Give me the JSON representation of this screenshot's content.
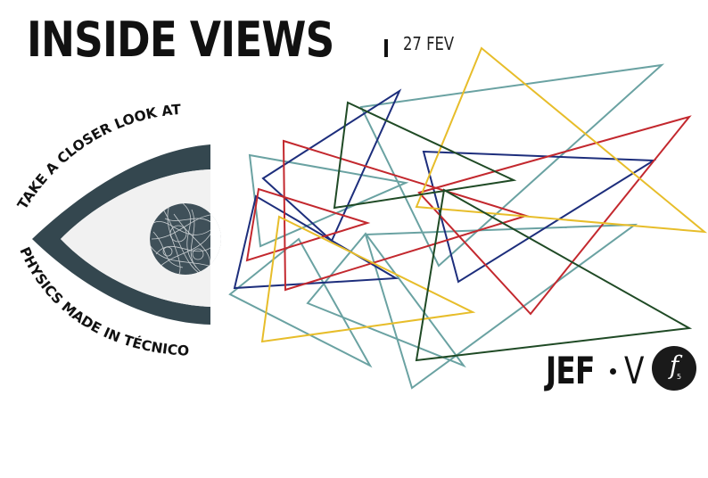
{
  "poster": {
    "title": "INSIDE VIEWS",
    "date": "27 FEV",
    "eye_top_text": "TAKE A CLOSER LOOK AT",
    "eye_bottom_text": "PHYSICS MADE IN TÉCNICO"
  },
  "logo": {
    "jef": "JEF",
    "roman": "V",
    "badge_glyph": "f",
    "badge_subscript": "5"
  },
  "icons": {
    "eye": "eye-icon",
    "pupil": "particle-tracks-pupil-icon",
    "triangles": "triangle-cluster-icon"
  },
  "colors": {
    "eye_frame": "#34474f",
    "eye_white": "#f1f1f1",
    "pupil": "#3f5059",
    "tracks": "#c8cdd0",
    "teal": "#6aa2a2",
    "navy": "#1d2e7c",
    "red": "#c3282e",
    "yellow": "#e7bd2a",
    "green": "#1f4a25"
  }
}
